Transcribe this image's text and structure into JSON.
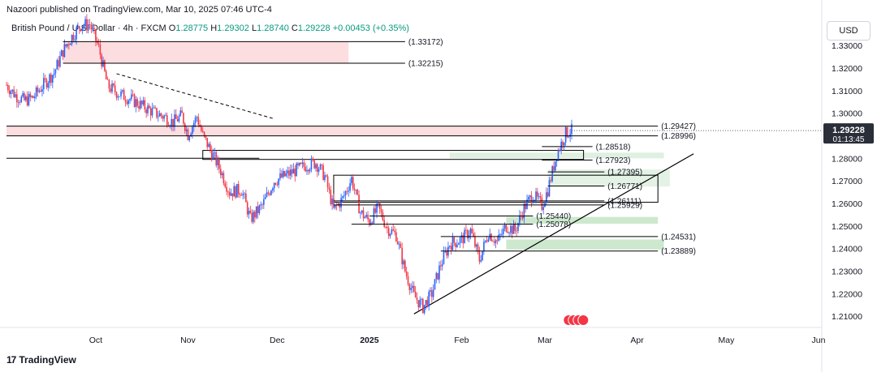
{
  "header": {
    "publisher": "Nazoori published on TradingView.com, Mar 10, 2025 07:46 UTC-4",
    "symbol": "British Pound / U.S. Dollar · 4h · FXCM",
    "open_label": "O",
    "open": "1.28775",
    "high_label": "H",
    "high": "1.29302",
    "low_label": "L",
    "low": "1.28740",
    "close_label": "C",
    "close": "1.29228",
    "change": "+0.00453 (+0.35%)"
  },
  "currency_button": "USD",
  "brand": "TradingView",
  "colors": {
    "up": "#089981",
    "down": "#f23645",
    "candle_body_up": "#2962ff",
    "candle_body_down": "#f23645",
    "supply_zone": "#fbd4d8",
    "demand_zone": "#c8e6c9",
    "price_badge": "#2a2e39",
    "line": "#000000"
  },
  "chart_data": {
    "type": "candlestick",
    "y_axis": {
      "range": [
        1.205,
        1.343
      ],
      "ticks": [
        "1.33000",
        "1.32000",
        "1.31000",
        "1.30000",
        "1.28000",
        "1.27000",
        "1.26000",
        "1.25000",
        "1.24000",
        "1.23000",
        "1.22000",
        "1.21000"
      ]
    },
    "x_axis": {
      "ticks": [
        {
          "label": "Oct",
          "date": "2024-10-01"
        },
        {
          "label": "Nov",
          "date": "2024-11-01"
        },
        {
          "label": "Dec",
          "date": "2024-12-01"
        },
        {
          "label": "2025",
          "date": "2025-01-01",
          "bold": true
        },
        {
          "label": "Feb",
          "date": "2025-02-01"
        },
        {
          "label": "Mar",
          "date": "2025-03-01"
        },
        {
          "label": "Apr",
          "date": "2025-04-01"
        },
        {
          "label": "May",
          "date": "2025-05-01"
        },
        {
          "label": "Jun",
          "date": "2025-06-01"
        }
      ]
    },
    "current_price": {
      "price": "1.29228",
      "countdown": "01:13:45"
    },
    "series": [
      {
        "date": "2024-09-01",
        "close": 1.3125
      },
      {
        "date": "2024-09-04",
        "close": 1.308
      },
      {
        "date": "2024-09-07",
        "close": 1.3055
      },
      {
        "date": "2024-09-10",
        "close": 1.307
      },
      {
        "date": "2024-09-13",
        "close": 1.312
      },
      {
        "date": "2024-09-17",
        "close": 1.318
      },
      {
        "date": "2024-09-20",
        "close": 1.3275
      },
      {
        "date": "2024-09-23",
        "close": 1.334
      },
      {
        "date": "2024-09-26",
        "close": 1.339
      },
      {
        "date": "2024-09-29",
        "close": 1.3395
      },
      {
        "date": "2024-10-02",
        "close": 1.329
      },
      {
        "date": "2024-10-05",
        "close": 1.312
      },
      {
        "date": "2024-10-09",
        "close": 1.3085
      },
      {
        "date": "2024-10-13",
        "close": 1.306
      },
      {
        "date": "2024-10-17",
        "close": 1.303
      },
      {
        "date": "2024-10-21",
        "close": 1.3
      },
      {
        "date": "2024-10-24",
        "close": 1.2985
      },
      {
        "date": "2024-10-27",
        "close": 1.296
      },
      {
        "date": "2024-10-30",
        "close": 1.299
      },
      {
        "date": "2024-11-01",
        "close": 1.2905
      },
      {
        "date": "2024-11-04",
        "close": 1.2985
      },
      {
        "date": "2024-11-06",
        "close": 1.29
      },
      {
        "date": "2024-11-09",
        "close": 1.2825
      },
      {
        "date": "2024-11-12",
        "close": 1.2745
      },
      {
        "date": "2024-11-15",
        "close": 1.265
      },
      {
        "date": "2024-11-19",
        "close": 1.266
      },
      {
        "date": "2024-11-22",
        "close": 1.253
      },
      {
        "date": "2024-11-26",
        "close": 1.259
      },
      {
        "date": "2024-11-30",
        "close": 1.27
      },
      {
        "date": "2024-12-04",
        "close": 1.2725
      },
      {
        "date": "2024-12-07",
        "close": 1.2745
      },
      {
        "date": "2024-12-11",
        "close": 1.277
      },
      {
        "date": "2024-12-14",
        "close": 1.278
      },
      {
        "date": "2024-12-17",
        "close": 1.272
      },
      {
        "date": "2024-12-20",
        "close": 1.257
      },
      {
        "date": "2024-12-23",
        "close": 1.262
      },
      {
        "date": "2024-12-26",
        "close": 1.271
      },
      {
        "date": "2024-12-29",
        "close": 1.256
      },
      {
        "date": "2025-01-01",
        "close": 1.252
      },
      {
        "date": "2025-01-04",
        "close": 1.258
      },
      {
        "date": "2025-01-07",
        "close": 1.249
      },
      {
        "date": "2025-01-10",
        "close": 1.246
      },
      {
        "date": "2025-01-13",
        "close": 1.23
      },
      {
        "date": "2025-01-16",
        "close": 1.219
      },
      {
        "date": "2025-01-19",
        "close": 1.214
      },
      {
        "date": "2025-01-22",
        "close": 1.22
      },
      {
        "date": "2025-01-25",
        "close": 1.233
      },
      {
        "date": "2025-01-28",
        "close": 1.242
      },
      {
        "date": "2025-02-01",
        "close": 1.244
      },
      {
        "date": "2025-02-04",
        "close": 1.248
      },
      {
        "date": "2025-02-07",
        "close": 1.235
      },
      {
        "date": "2025-02-10",
        "close": 1.247
      },
      {
        "date": "2025-02-13",
        "close": 1.243
      },
      {
        "date": "2025-02-16",
        "close": 1.25
      },
      {
        "date": "2025-02-19",
        "close": 1.248
      },
      {
        "date": "2025-02-22",
        "close": 1.258
      },
      {
        "date": "2025-02-25",
        "close": 1.264
      },
      {
        "date": "2025-02-28",
        "close": 1.259
      },
      {
        "date": "2025-03-02",
        "close": 1.266
      },
      {
        "date": "2025-03-05",
        "close": 1.282
      },
      {
        "date": "2025-03-08",
        "close": 1.291
      },
      {
        "date": "2025-03-10",
        "close": 1.2923
      }
    ],
    "levels": [
      {
        "label": "(1.33172)",
        "price": 1.33172,
        "from": "2024-09-20",
        "to": "2025-01-13"
      },
      {
        "label": "(1.32215)",
        "price": 1.32215,
        "from": "2024-09-20",
        "to": "2025-01-13"
      },
      {
        "label": "(1.29427)",
        "price": 1.29427,
        "from": "2024-09-01",
        "to": "2025-04-08"
      },
      {
        "label": "(1.28996)",
        "price": 1.28996,
        "from": "2024-09-01",
        "to": "2025-04-08"
      },
      {
        "label": "(1.28518)",
        "price": 1.28518,
        "from": "2025-02-28",
        "to": "2025-03-17"
      },
      {
        "label": "(1.27923)",
        "price": 1.27923,
        "from": "2025-02-28",
        "to": "2025-03-17"
      },
      {
        "label": "(1.27395)",
        "price": 1.27395,
        "from": "2025-03-02",
        "to": "2025-03-21"
      },
      {
        "label": "(1.26771)",
        "price": 1.26771,
        "from": "2025-03-02",
        "to": "2025-03-21"
      },
      {
        "label": "(1.26111)",
        "price": 1.26111,
        "from": "2024-12-20",
        "to": "2025-03-21"
      },
      {
        "label": "(1.25929)",
        "price": 1.25929,
        "from": "2024-12-20",
        "to": "2025-03-21"
      },
      {
        "label": "(1.25440)",
        "price": 1.2544,
        "from": "2025-01-01",
        "to": "2025-02-25"
      },
      {
        "label": "(1.25078)",
        "price": 1.25078,
        "from": "2024-12-26",
        "to": "2025-02-25"
      },
      {
        "label": "(1.24531)",
        "price": 1.24531,
        "from": "2025-01-25",
        "to": "2025-04-08"
      },
      {
        "label": "(1.23889)",
        "price": 1.23889,
        "from": "2025-01-25",
        "to": "2025-04-08"
      }
    ]
  }
}
